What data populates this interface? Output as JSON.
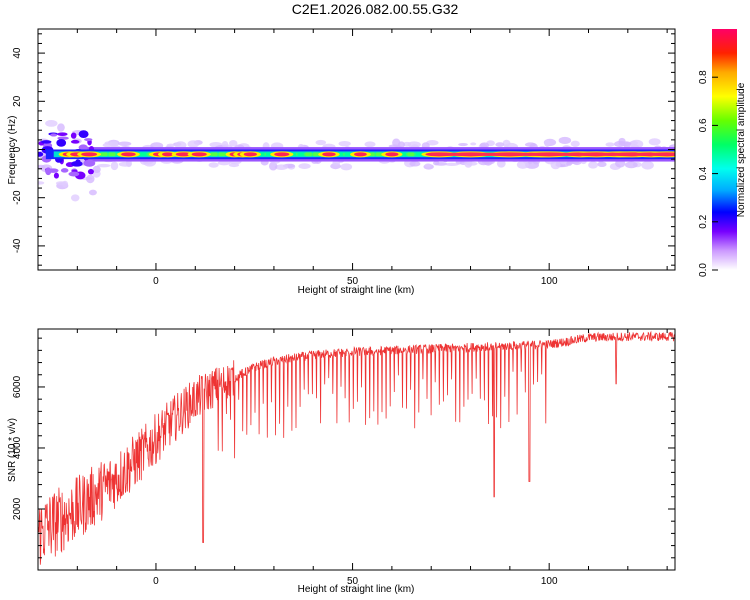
{
  "title": "C2E1.2026.082.00.55.G32",
  "chart_data": [
    {
      "type": "heatmap",
      "name": "spectrogram",
      "xlabel": "Height of straight line (km)",
      "ylabel": "Frequency (Hz)",
      "xlim": [
        -30,
        132
      ],
      "ylim": [
        -50,
        50
      ],
      "xticks": [
        0,
        50,
        100
      ],
      "yticks": [
        -40,
        -20,
        0,
        20,
        40
      ],
      "colorbar": {
        "label": "Normalized spectral amplitude",
        "range": [
          0,
          1
        ],
        "ticks": [
          0.0,
          0.2,
          0.4,
          0.6,
          0.8
        ],
        "tick_labels": [
          "0.0",
          "0.2",
          "0.4",
          "0.6",
          "0.8"
        ]
      },
      "ridge": {
        "center_hz": -2,
        "peaks_km": [
          -22,
          -20,
          -17,
          -7,
          1,
          3,
          7,
          11,
          20,
          22,
          24,
          32,
          44,
          52,
          60,
          72,
          80,
          90,
          98,
          100,
          108,
          112,
          118,
          121,
          126,
          130
        ]
      }
    },
    {
      "type": "line",
      "name": "snr",
      "xlabel": "Height of straight line (km)",
      "ylabel": "SNR (10 * v/v)",
      "xlim": [
        -30,
        132
      ],
      "ylim": [
        0,
        7900
      ],
      "xticks": [
        0,
        50,
        100
      ],
      "yticks": [
        2000,
        4000,
        6000
      ],
      "color": "#ee3333",
      "trend": [
        [
          -30,
          1200
        ],
        [
          -20,
          2000
        ],
        [
          -10,
          3000
        ],
        [
          -5,
          3600
        ],
        [
          0,
          4300
        ],
        [
          5,
          5000
        ],
        [
          10,
          5600
        ],
        [
          15,
          6000
        ],
        [
          20,
          6300
        ],
        [
          25,
          6650
        ],
        [
          30,
          6850
        ],
        [
          40,
          7050
        ],
        [
          50,
          7150
        ],
        [
          60,
          7200
        ],
        [
          70,
          7250
        ],
        [
          80,
          7300
        ],
        [
          90,
          7350
        ],
        [
          100,
          7400
        ],
        [
          105,
          7500
        ],
        [
          110,
          7620
        ],
        [
          120,
          7650
        ],
        [
          132,
          7650
        ]
      ],
      "dropouts": [
        [
          12,
          900
        ],
        [
          86,
          2400
        ],
        [
          95,
          2900
        ],
        [
          117,
          6100
        ]
      ]
    }
  ]
}
